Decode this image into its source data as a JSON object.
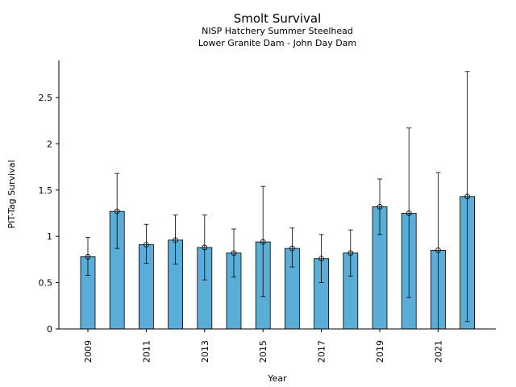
{
  "chart_data": {
    "type": "bar",
    "title": "Smolt Survival",
    "subtitle_1": "NISP Hatchery Summer Steelhead",
    "subtitle_2": "Lower Granite Dam - John Day Dam",
    "xlabel": "Year",
    "ylabel": "PIT-Tag Survival",
    "categories": [
      "2009",
      "2010",
      "2011",
      "2012",
      "2013",
      "2014",
      "2015",
      "2016",
      "2017",
      "2018",
      "2019",
      "2020",
      "2021",
      "2022"
    ],
    "x_tick_labels": [
      "2009",
      "2011",
      "2013",
      "2015",
      "2017",
      "2019",
      "2021"
    ],
    "y_tick_labels": [
      "0",
      "0.5",
      "1",
      "1.5",
      "2",
      "2.5"
    ],
    "y_ticks": [
      0,
      0.5,
      1,
      1.5,
      2,
      2.5
    ],
    "ylim": [
      0,
      2.9
    ],
    "series": [
      {
        "values": [
          0.78,
          1.27,
          0.91,
          0.96,
          0.88,
          0.82,
          0.94,
          0.87,
          0.76,
          0.82,
          1.32,
          1.25,
          0.85,
          1.43
        ],
        "lower": [
          0.58,
          0.87,
          0.71,
          0.7,
          0.53,
          0.56,
          0.35,
          0.67,
          0.5,
          0.57,
          1.02,
          0.34,
          0.0,
          0.08
        ],
        "upper": [
          0.99,
          1.68,
          1.13,
          1.23,
          1.23,
          1.08,
          1.54,
          1.09,
          1.02,
          1.07,
          1.62,
          2.17,
          1.69,
          2.78
        ]
      }
    ],
    "colors": {
      "bar": "#5aadd6",
      "edge": "#000000"
    },
    "grid": false,
    "legend": "none"
  }
}
